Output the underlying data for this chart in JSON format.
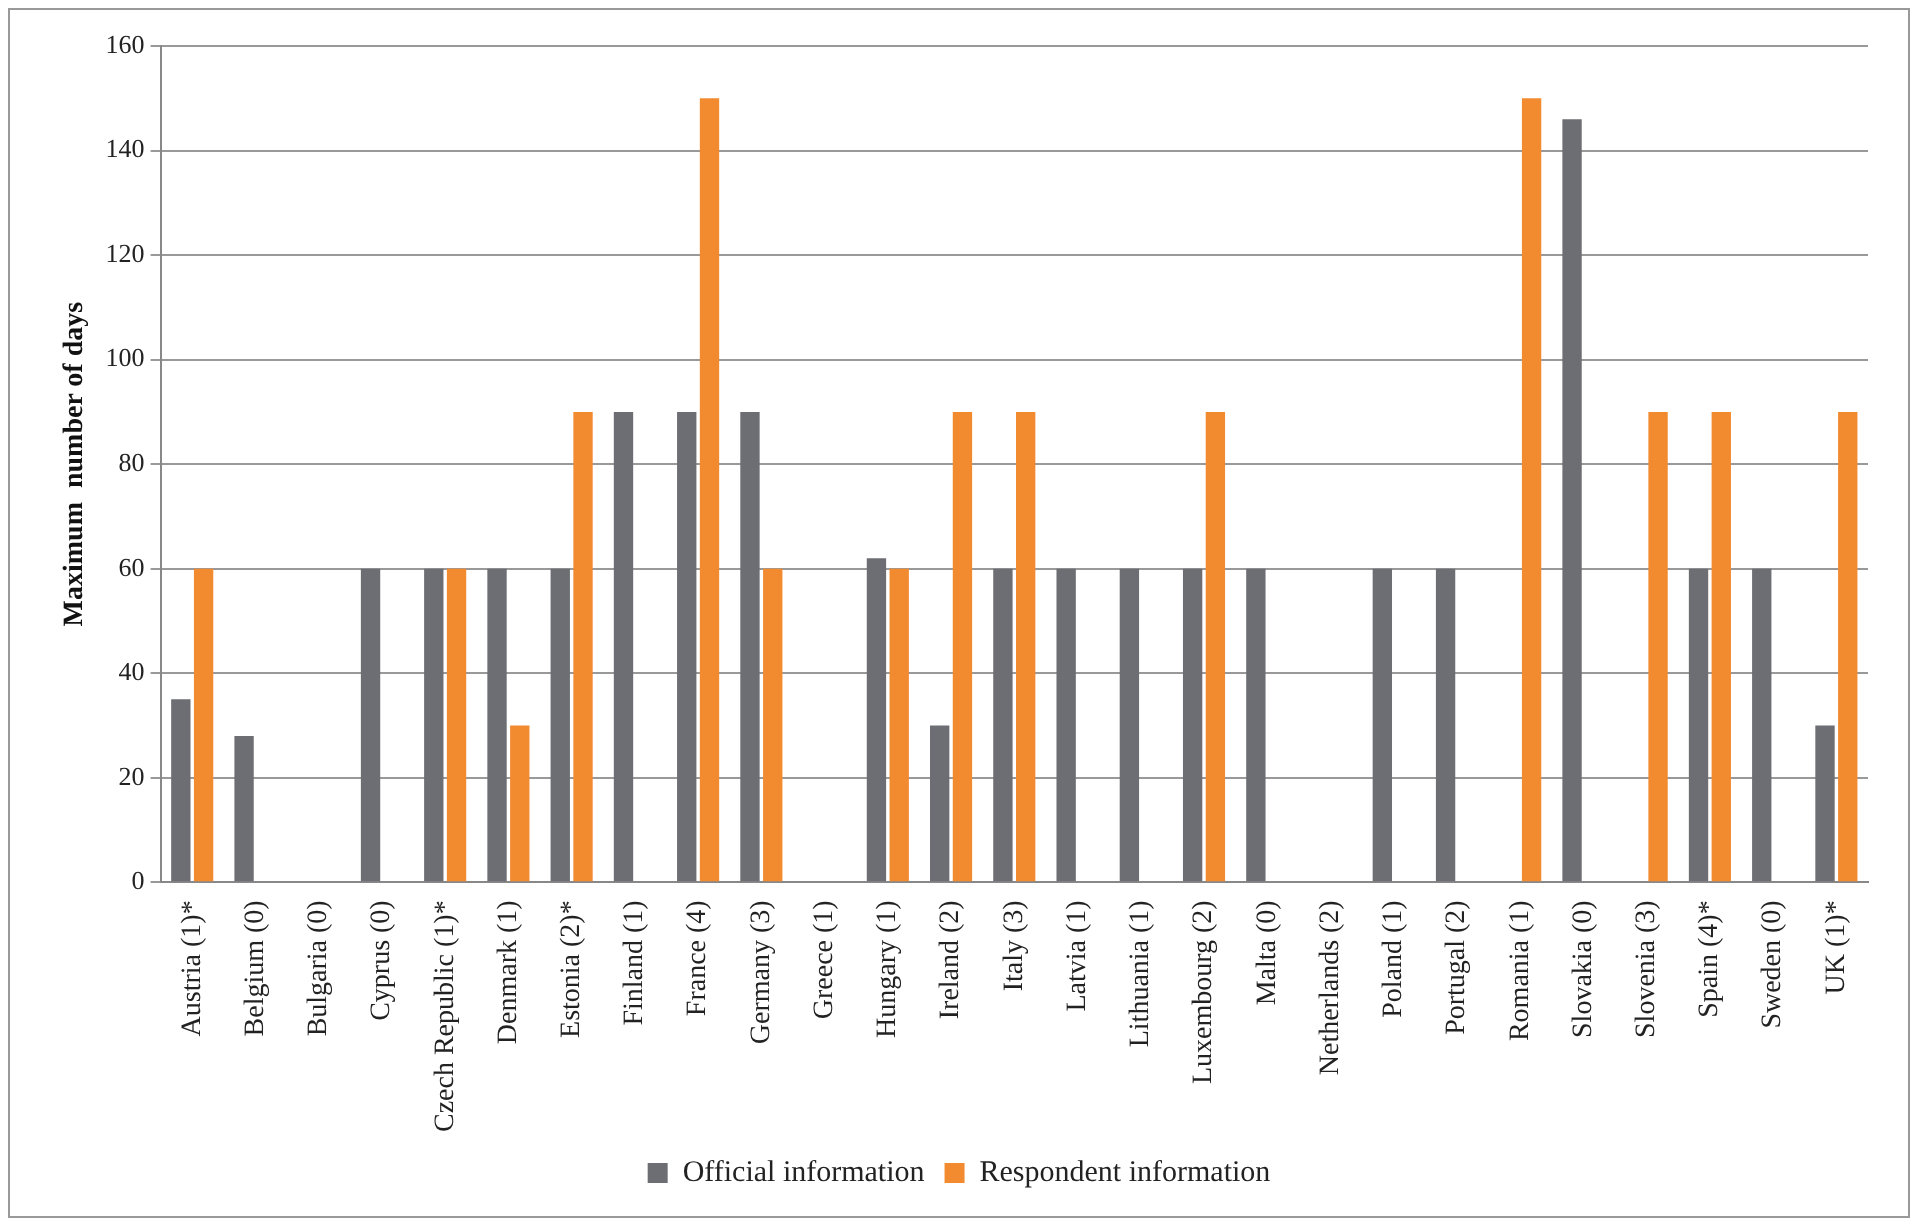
{
  "chart_data": {
    "type": "bar",
    "ylabel": "Maximum  number of days",
    "categories": [
      "Austria (1)*",
      "Belgium (0)",
      "Bulgaria (0)",
      "Cyprus (0)",
      "Czech Republic (1)*",
      "Denmark (1)",
      "Estonia (2)*",
      "Finland (1)",
      "France (4)",
      "Germany (3)",
      "Greece (1)",
      "Hungary (1)",
      "Ireland (2)",
      "Italy (3)",
      "Latvia (1)",
      "Lithuania (1)",
      "Luxembourg (2)",
      "Malta (0)",
      "Netherlands (2)",
      "Poland (1)",
      "Portugal (2)",
      "Romania (1)",
      "Slovakia (0)",
      "Slovenia (3)",
      "Spain (4)*",
      "Sweden (0)",
      "UK (1)*"
    ],
    "series": [
      {
        "name": "Official information",
        "color": "#6d6e73",
        "values": [
          35,
          28,
          null,
          60,
          60,
          60,
          60,
          90,
          90,
          90,
          null,
          62,
          30,
          60,
          60,
          60,
          60,
          60,
          null,
          60,
          60,
          null,
          146,
          null,
          60,
          60,
          30
        ]
      },
      {
        "name": "Respondent information",
        "color": "#f28a30",
        "values": [
          60,
          null,
          null,
          null,
          60,
          30,
          90,
          null,
          150,
          60,
          null,
          60,
          90,
          90,
          null,
          null,
          90,
          null,
          null,
          null,
          null,
          150,
          null,
          90,
          90,
          null,
          90
        ]
      }
    ],
    "ylim": [
      0,
      160
    ],
    "yticks": [
      0,
      20,
      40,
      60,
      80,
      100,
      120,
      140,
      160
    ],
    "grid": "y",
    "legend": "bottom"
  }
}
